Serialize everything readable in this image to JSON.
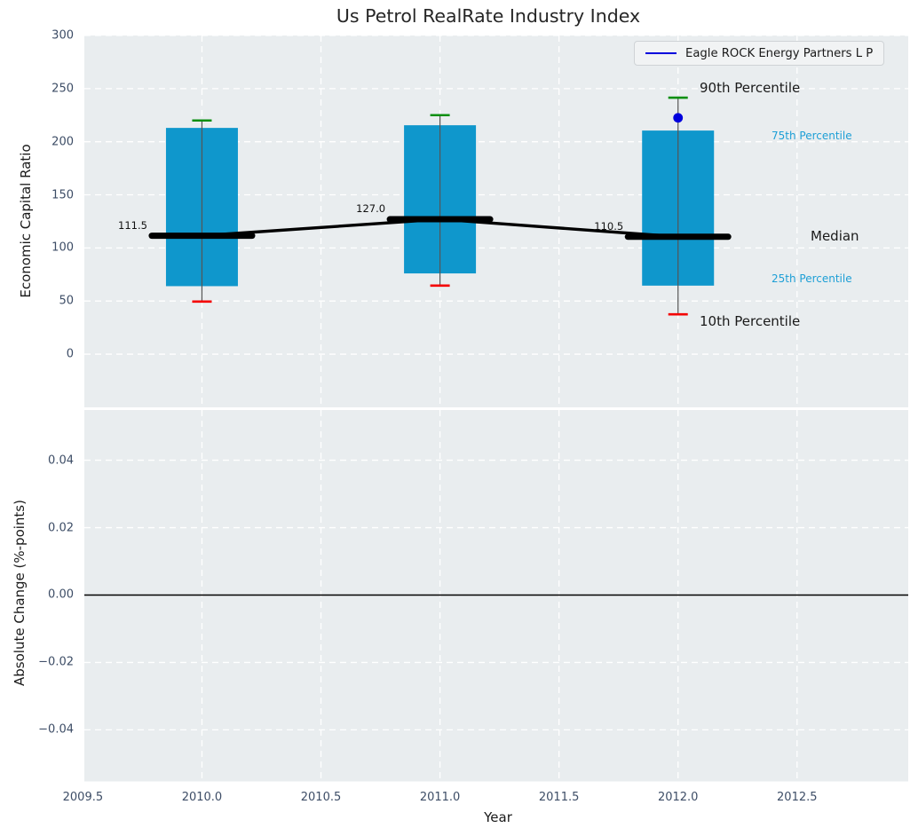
{
  "title": "Us Petrol RealRate Industry Index",
  "legend": {
    "label": "Eagle ROCK Energy Partners L P"
  },
  "annotations": {
    "p90": "90th Percentile",
    "p75": "75th Percentile",
    "median": "Median",
    "p25": "25th Percentile",
    "p10": "10th Percentile"
  },
  "colors": {
    "bar": "#0f97cc",
    "whisker": "#555555",
    "cap_top": "#0a8f11",
    "cap_bottom": "#f40000",
    "median_line": "#000000",
    "trend_line": "#000000",
    "company_point": "#0000dd",
    "legend_swatch": "#0000dd",
    "plot_bg": "#e9edef",
    "grid": "#ffffff",
    "tick_text": "#3d4d66",
    "label_text": "#1a1a1a",
    "annotation_blue": "#1d9fd6",
    "zero_line": "#000000"
  },
  "chart_data": [
    {
      "type": "box-percentile",
      "panel": "top",
      "ylabel": "Economic Capital Ratio",
      "ylim": [
        -50.1,
        300
      ],
      "yticks": {
        "values": [
          0,
          50,
          100,
          150,
          200,
          250,
          300
        ],
        "labels": [
          "0",
          "50",
          "100",
          "150",
          "200",
          "250",
          "300"
        ]
      },
      "xlim": [
        2009.506,
        2012.967
      ],
      "grid": true,
      "legend_position": "upper right",
      "groups": [
        {
          "year": 2010,
          "p10": 49.5,
          "p25": 64.0,
          "median": 111.5,
          "p75": 213.0,
          "p90": 220.0,
          "median_label": "111.5"
        },
        {
          "year": 2011,
          "p10": 64.5,
          "p25": 76.0,
          "median": 127.0,
          "p75": 215.5,
          "p90": 225.0,
          "median_label": "127.0"
        },
        {
          "year": 2012,
          "p10": 37.5,
          "p25": 64.5,
          "median": 110.5,
          "p75": 210.5,
          "p90": 241.5,
          "median_label": "110.5"
        }
      ],
      "company_point": {
        "name": "Eagle ROCK Energy Partners L P",
        "x": 2012,
        "y": 222.5
      }
    },
    {
      "type": "line",
      "panel": "bottom",
      "ylabel": "Absolute Change (%-points)",
      "xlabel": "Year",
      "ylim": [
        -0.0553,
        0.0549
      ],
      "yticks": {
        "values": [
          0.04,
          0.02,
          0,
          -0.02,
          -0.04
        ],
        "labels": [
          "0.04",
          "0.02",
          "0.00",
          "−0.02",
          "−0.04"
        ]
      },
      "xlim": [
        2009.506,
        2012.967
      ],
      "xticks": {
        "values": [
          2009.5,
          2010,
          2010.5,
          2011,
          2011.5,
          2012,
          2012.5
        ],
        "labels": [
          "2009.5",
          "2010.0",
          "2010.5",
          "2011.0",
          "2011.5",
          "2012.0",
          "2012.5"
        ]
      },
      "series": [],
      "zero_line": 0.0,
      "grid": true
    }
  ]
}
